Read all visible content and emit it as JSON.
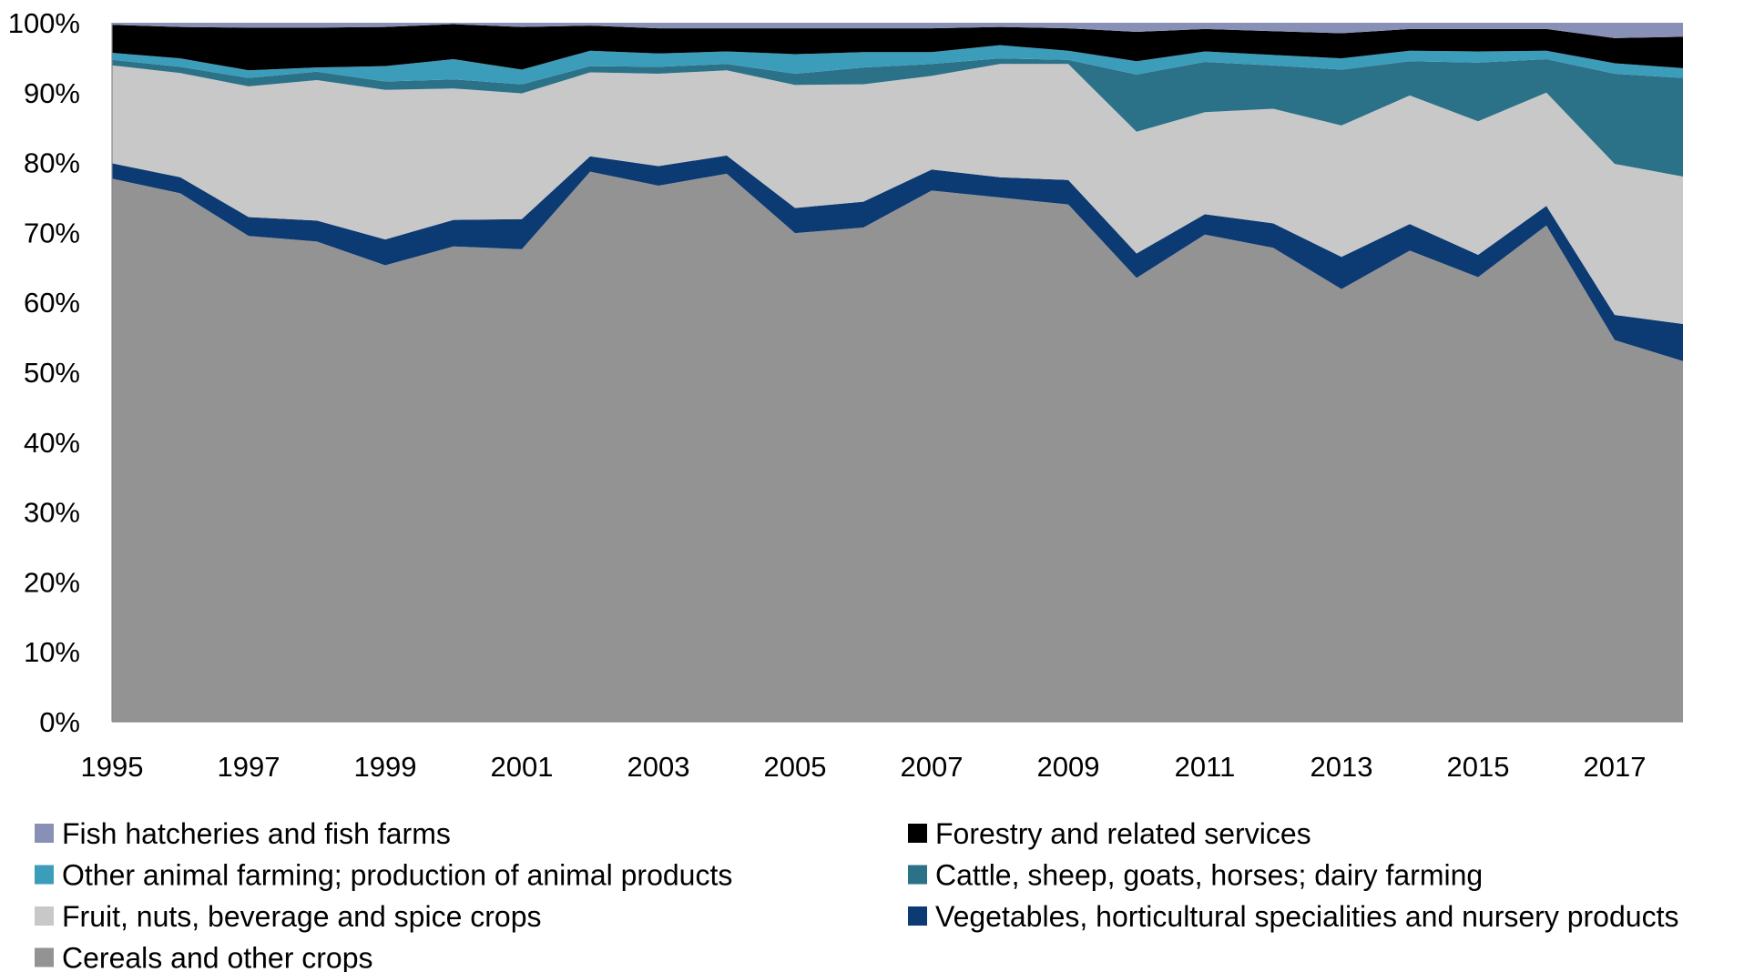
{
  "chart_data": {
    "type": "area",
    "stacked": true,
    "percent": true,
    "x": [
      1995,
      1996,
      1997,
      1998,
      1999,
      2000,
      2001,
      2002,
      2003,
      2004,
      2005,
      2006,
      2007,
      2008,
      2009,
      2010,
      2011,
      2012,
      2013,
      2014,
      2015,
      2016,
      2017,
      2018
    ],
    "x_tick_labels": [
      "1995",
      "1997",
      "1999",
      "2001",
      "2003",
      "2005",
      "2007",
      "2009",
      "2011",
      "2013",
      "2015",
      "2017"
    ],
    "y_tick_labels": [
      "0%",
      "10%",
      "20%",
      "30%",
      "40%",
      "50%",
      "60%",
      "70%",
      "80%",
      "90%",
      "100%"
    ],
    "ylim": [
      0,
      100
    ],
    "grid": false,
    "legend_position": "bottom",
    "series": [
      {
        "name": "Cereals and other crops",
        "color": "#939393",
        "values": [
          77.7,
          75.6,
          69.5,
          68.7,
          65.3,
          68.0,
          67.6,
          78.7,
          76.7,
          78.4,
          69.9,
          70.7,
          76.0,
          75.0,
          74.0,
          63.5,
          69.7,
          67.8,
          61.9,
          67.4,
          63.6,
          71.0,
          54.6,
          51.6
        ]
      },
      {
        "name": "Vegetables, horticultural specialities and nursery products",
        "color": "#0c3a73",
        "values": [
          2.2,
          2.3,
          2.7,
          3.0,
          3.7,
          3.8,
          4.3,
          2.2,
          2.8,
          2.6,
          3.6,
          3.7,
          3.0,
          2.9,
          3.5,
          3.5,
          2.9,
          3.5,
          4.6,
          3.8,
          3.2,
          2.8,
          3.6,
          5.3
        ]
      },
      {
        "name": "Fruit, nuts, beverage and spice crops",
        "color": "#c8c8c8",
        "values": [
          14.0,
          14.9,
          18.7,
          20.1,
          21.4,
          18.8,
          18.0,
          12.0,
          13.2,
          12.2,
          17.6,
          16.8,
          13.4,
          16.2,
          16.6,
          17.4,
          14.6,
          16.4,
          18.8,
          18.4,
          19.1,
          16.2,
          21.6,
          21.1
        ]
      },
      {
        "name": "Cattle, sheep, goats, horses; dairy farming",
        "color": "#2b7289",
        "values": [
          0.8,
          0.9,
          1.2,
          1.2,
          1.2,
          1.3,
          1.3,
          0.9,
          1.0,
          0.9,
          1.6,
          2.4,
          1.7,
          0.8,
          0.6,
          8.2,
          7.2,
          6.2,
          8.0,
          4.9,
          8.4,
          4.8,
          12.9,
          14.1
        ]
      },
      {
        "name": "Other animal farming; production of animal products",
        "color": "#3c9dbb",
        "values": [
          1.0,
          1.2,
          1.1,
          0.6,
          2.2,
          2.9,
          2.1,
          2.2,
          1.9,
          1.8,
          2.8,
          2.2,
          1.7,
          1.9,
          1.3,
          1.9,
          1.5,
          1.5,
          1.6,
          1.5,
          1.6,
          1.2,
          1.5,
          1.4
        ]
      },
      {
        "name": "Forestry and related services",
        "color": "#000000",
        "values": [
          4.0,
          4.5,
          6.1,
          5.7,
          5.6,
          5.0,
          6.1,
          3.6,
          3.6,
          3.3,
          3.7,
          3.4,
          3.4,
          2.6,
          3.2,
          4.2,
          3.2,
          3.4,
          3.6,
          3.1,
          3.2,
          3.1,
          3.6,
          4.5
        ]
      },
      {
        "name": "Fish hatcheries and fish farms",
        "color": "#8990b6",
        "values": [
          0.3,
          0.6,
          0.7,
          0.7,
          0.6,
          0.2,
          0.6,
          0.4,
          0.8,
          0.8,
          0.8,
          0.8,
          0.8,
          0.6,
          0.8,
          1.3,
          0.9,
          1.2,
          1.5,
          0.9,
          0.9,
          0.9,
          2.2,
          2.0
        ]
      }
    ],
    "legend": {
      "order": [
        "Fish hatcheries and fish farms",
        "Forestry and related services",
        "Other animal farming; production of animal products",
        "Cattle, sheep, goats, horses; dairy farming",
        "Fruit, nuts, beverage and spice crops",
        "Vegetables, horticultural specialities and nursery products",
        "Cereals and other crops"
      ]
    }
  }
}
